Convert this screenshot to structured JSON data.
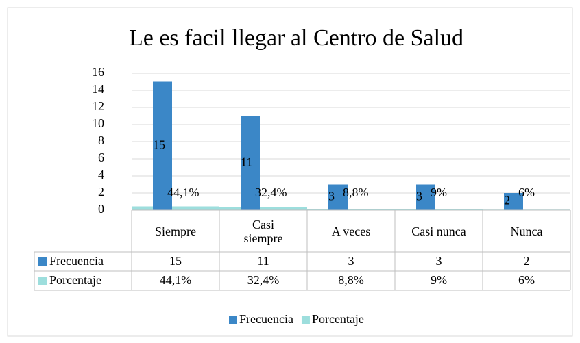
{
  "chart_data": {
    "type": "bar",
    "title": "Le es facil llegar al Centro de Salud",
    "categories": [
      "Siempre",
      "Casi siempre",
      "A veces",
      "Casi nunca",
      "Nunca"
    ],
    "series": [
      {
        "name": "Frecuencia",
        "color": "#3b87c7",
        "values": [
          15,
          11,
          3,
          3,
          2
        ]
      },
      {
        "name": "Porcentaje",
        "color": "#9ddedd",
        "values": [
          0.441,
          0.324,
          0.088,
          0.09,
          0.06
        ],
        "value_labels": [
          "44,1%",
          "32,4%",
          "8,8%",
          "9%",
          "6%"
        ]
      }
    ],
    "ylim": [
      0,
      16
    ],
    "yticks": [
      0,
      2,
      4,
      6,
      8,
      10,
      12,
      14,
      16
    ],
    "grid": true,
    "legend": "bottom",
    "data_table": true
  }
}
